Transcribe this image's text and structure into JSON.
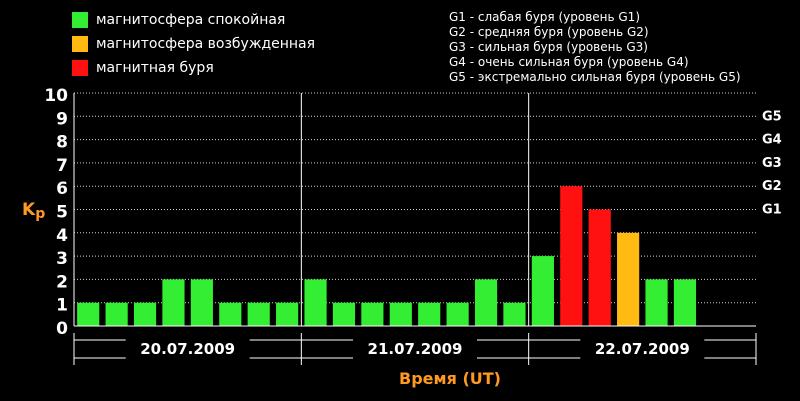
{
  "legend": {
    "items": [
      {
        "label": "магнитосфера спокойная",
        "color": "#33ee33"
      },
      {
        "label": "магнитосфера возбужденная",
        "color": "#ffbb11"
      },
      {
        "label": "магнитная буря",
        "color": "#ff1111"
      }
    ],
    "storm_levels": [
      "G1 - слабая буря (уровень G1)",
      "G2 - средняя буря (уровень G2)",
      "G3 - сильная буря (уровень G3)",
      "G4 - очень сильная буря (уровень G4)",
      "G5 - экстремально сильная буря (уровень G5)"
    ]
  },
  "chart_data": {
    "type": "bar",
    "ylabel": "Kp",
    "xlabel": "Время (UT)",
    "ylim": [
      0,
      10
    ],
    "yticks": [
      "0",
      "1",
      "2",
      "3",
      "4",
      "5",
      "6",
      "7",
      "8",
      "9",
      "10"
    ],
    "g_levels": [
      {
        "label": "G1",
        "kp": 5
      },
      {
        "label": "G2",
        "kp": 6
      },
      {
        "label": "G3",
        "kp": 7
      },
      {
        "label": "G4",
        "kp": 8
      },
      {
        "label": "G5",
        "kp": 9
      }
    ],
    "days": [
      "20.07.2009",
      "21.07.2009",
      "22.07.2009"
    ],
    "values": [
      1,
      1,
      1,
      2,
      2,
      1,
      1,
      1,
      2,
      1,
      1,
      1,
      1,
      1,
      2,
      1,
      3,
      6,
      5,
      4,
      2,
      2
    ],
    "colors": {
      "quiet": "#33ee33",
      "excited": "#ffbb11",
      "storm": "#ff1111",
      "axis_label": "#ff9922"
    }
  }
}
